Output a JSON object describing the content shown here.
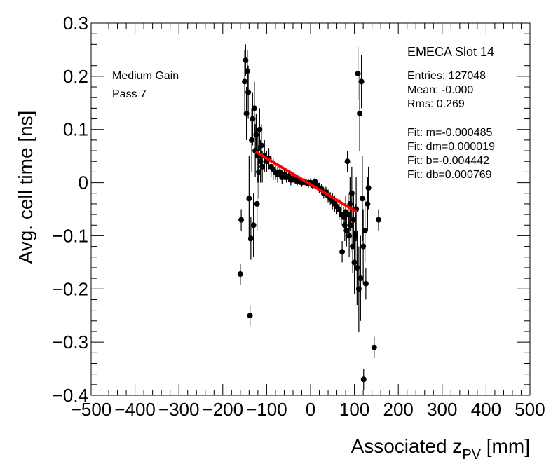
{
  "chart_data": {
    "type": "scatter",
    "xlabel": "Associated z",
    "xlabel_sub": "PV",
    "xlabel_unit": " [mm]",
    "ylabel": "Avg. cell time [ns]",
    "xlim": [
      -500,
      500
    ],
    "ylim": [
      -0.4,
      0.3
    ],
    "x_ticks": [
      -500,
      -400,
      -300,
      -200,
      -100,
      0,
      100,
      200,
      300,
      400,
      500
    ],
    "x_tick_labels": [
      "−500",
      "−400",
      "−300",
      "−200",
      "−100",
      "0",
      "100",
      "200",
      "300",
      "400",
      "500"
    ],
    "y_ticks": [
      -0.4,
      -0.3,
      -0.2,
      -0.1,
      0,
      0.1,
      0.2,
      0.3
    ],
    "y_tick_labels": [
      "−0.4",
      "−0.3",
      "−0.2",
      "−0.1",
      "0",
      "0.1",
      "0.2",
      "0.3"
    ],
    "annotations_left": [
      "Medium Gain",
      "Pass 7"
    ],
    "stats_title": "EMECA Slot 14",
    "stats": [
      "Entries: 127048",
      "Mean: -0.000",
      "Rms: 0.269"
    ],
    "fit_params": [
      "Fit: m=-0.000485",
      "Fit: dm=0.000019",
      "Fit: b=-0.004442",
      "Fit: db=0.000769"
    ],
    "fit_line": {
      "x": [
        -125,
        105
      ],
      "y": [
        0.058,
        -0.055
      ],
      "color": "#ff0000"
    },
    "series": [
      {
        "name": "data",
        "color": "#000000",
        "points": [
          [
            -160,
            -0.172,
            0.02
          ],
          [
            -158,
            -0.07,
            0.02
          ],
          [
            -150,
            0.19,
            0.06
          ],
          [
            -148,
            0.23,
            0.03
          ],
          [
            -146,
            0.13,
            0.05
          ],
          [
            -144,
            0.21,
            0.04
          ],
          [
            -142,
            0.17,
            0.05
          ],
          [
            -140,
            -0.03,
            0.08
          ],
          [
            -138,
            -0.25,
            0.02
          ],
          [
            -136,
            -0.105,
            0.04
          ],
          [
            -134,
            0.08,
            0.06
          ],
          [
            -132,
            0.12,
            0.05
          ],
          [
            -130,
            -0.08,
            0.06
          ],
          [
            -128,
            0.14,
            0.05
          ],
          [
            -126,
            0.06,
            0.05
          ],
          [
            -124,
            0.09,
            0.04
          ],
          [
            -122,
            -0.04,
            0.05
          ],
          [
            -120,
            0.05,
            0.05
          ],
          [
            -118,
            0.02,
            0.05
          ],
          [
            -116,
            0.1,
            0.04
          ],
          [
            -114,
            0.04,
            0.04
          ],
          [
            -112,
            0.07,
            0.04
          ],
          [
            -110,
            0.03,
            0.03
          ],
          [
            -105,
            0.05,
            0.03
          ],
          [
            -100,
            0.04,
            0.02
          ],
          [
            -95,
            0.045,
            0.02
          ],
          [
            -90,
            0.03,
            0.02
          ],
          [
            -85,
            0.025,
            0.02
          ],
          [
            -80,
            0.02,
            0.015
          ],
          [
            -75,
            0.015,
            0.015
          ],
          [
            -70,
            0.02,
            0.012
          ],
          [
            -65,
            0.01,
            0.012
          ],
          [
            -60,
            0.015,
            0.01
          ],
          [
            -55,
            0.01,
            0.01
          ],
          [
            -50,
            0.012,
            0.01
          ],
          [
            -45,
            0.005,
            0.01
          ],
          [
            -40,
            0.008,
            0.008
          ],
          [
            -35,
            0.005,
            0.008
          ],
          [
            -30,
            0.003,
            0.008
          ],
          [
            -25,
            0.004,
            0.008
          ],
          [
            -20,
            0.0,
            0.008
          ],
          [
            -15,
            0.002,
            0.008
          ],
          [
            -10,
            0.0,
            0.008
          ],
          [
            -5,
            -0.002,
            0.008
          ],
          [
            0,
            0.0,
            0.008
          ],
          [
            5,
            -0.005,
            0.008
          ],
          [
            10,
            0.002,
            0.008
          ],
          [
            15,
            -0.005,
            0.008
          ],
          [
            20,
            -0.01,
            0.01
          ],
          [
            25,
            -0.012,
            0.01
          ],
          [
            30,
            -0.02,
            0.01
          ],
          [
            35,
            -0.018,
            0.01
          ],
          [
            40,
            -0.025,
            0.012
          ],
          [
            45,
            -0.03,
            0.012
          ],
          [
            50,
            -0.035,
            0.015
          ],
          [
            55,
            -0.04,
            0.015
          ],
          [
            60,
            -0.045,
            0.015
          ],
          [
            65,
            -0.05,
            0.02
          ],
          [
            70,
            -0.06,
            0.02
          ],
          [
            72,
            -0.13,
            0.02
          ],
          [
            75,
            -0.065,
            0.02
          ],
          [
            78,
            -0.08,
            0.03
          ],
          [
            80,
            -0.055,
            0.03
          ],
          [
            82,
            -0.09,
            0.03
          ],
          [
            84,
            0.04,
            0.02
          ],
          [
            86,
            -0.06,
            0.04
          ],
          [
            88,
            -0.1,
            0.04
          ],
          [
            90,
            -0.04,
            0.05
          ],
          [
            92,
            -0.08,
            0.05
          ],
          [
            94,
            -0.02,
            0.05
          ],
          [
            96,
            -0.12,
            0.05
          ],
          [
            98,
            -0.07,
            0.05
          ],
          [
            100,
            -0.15,
            0.06
          ],
          [
            102,
            -0.1,
            0.06
          ],
          [
            104,
            -0.05,
            0.06
          ],
          [
            106,
            -0.16,
            0.07
          ],
          [
            108,
            0.205,
            0.05
          ],
          [
            110,
            -0.2,
            0.08
          ],
          [
            112,
            0.13,
            0.07
          ],
          [
            114,
            -0.18,
            0.08
          ],
          [
            116,
            0.19,
            0.05
          ],
          [
            118,
            -0.03,
            0.08
          ],
          [
            120,
            -0.12,
            0.07
          ],
          [
            121,
            -0.37,
            0.02
          ],
          [
            124,
            -0.09,
            0.06
          ],
          [
            126,
            -0.19,
            0.03
          ],
          [
            130,
            -0.04,
            0.05
          ],
          [
            132,
            -0.01,
            0.04
          ],
          [
            145,
            -0.31,
            0.02
          ],
          [
            155,
            -0.07,
            0.02
          ]
        ]
      }
    ]
  }
}
